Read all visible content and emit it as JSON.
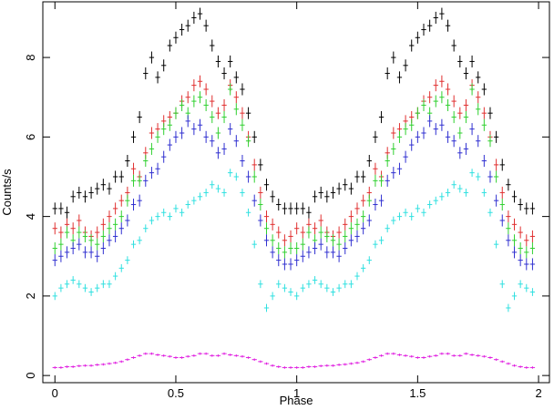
{
  "chart_data": {
    "type": "errorbar",
    "xlabel": "Phase",
    "ylabel": "Counts/s",
    "xlim": [
      -0.05,
      2.045
    ],
    "ylim": [
      -0.18,
      9.4
    ],
    "xticks": [
      0,
      0.5,
      1,
      1.5,
      2
    ],
    "yticks": [
      0,
      2,
      4,
      6,
      8
    ],
    "x": [
      0,
      0.025,
      0.05,
      0.075,
      0.1,
      0.125,
      0.15,
      0.175,
      0.2,
      0.225,
      0.25,
      0.275,
      0.3,
      0.325,
      0.35,
      0.375,
      0.4,
      0.425,
      0.45,
      0.475,
      0.5,
      0.525,
      0.55,
      0.575,
      0.6,
      0.625,
      0.65,
      0.675,
      0.7,
      0.725,
      0.75,
      0.775,
      0.8,
      0.825,
      0.85,
      0.875,
      0.9,
      0.925,
      0.95,
      0.975,
      1,
      1.025,
      1.05,
      1.075,
      1.1,
      1.125,
      1.15,
      1.175,
      1.2,
      1.225,
      1.25,
      1.275,
      1.3,
      1.325,
      1.35,
      1.375,
      1.4,
      1.425,
      1.45,
      1.475,
      1.5,
      1.525,
      1.55,
      1.575,
      1.6,
      1.625,
      1.65,
      1.675,
      1.7,
      1.725,
      1.75,
      1.775,
      1.8,
      1.825,
      1.85,
      1.875,
      1.9,
      1.925,
      1.95,
      1.975
    ],
    "series": [
      {
        "color": "#000000",
        "error": 0.15,
        "values": [
          4.2,
          4.2,
          4.1,
          4.5,
          4.6,
          4.5,
          4.6,
          4.7,
          4.8,
          4.7,
          5.0,
          5.0,
          5.4,
          6.0,
          6.5,
          7.6,
          8.0,
          7.5,
          7.8,
          8.3,
          8.5,
          8.7,
          8.8,
          9.0,
          9.1,
          8.8,
          8.3,
          7.9,
          7.6,
          7.9,
          7.5,
          7.2,
          6.6,
          6.0,
          5.3,
          4.8,
          4.5,
          4.3,
          4.2,
          4.2,
          4.2,
          4.2,
          4.1,
          4.5,
          4.6,
          4.5,
          4.6,
          4.7,
          4.8,
          4.7,
          5.0,
          5.0,
          5.4,
          6.0,
          6.5,
          7.6,
          8.0,
          7.5,
          7.8,
          8.3,
          8.5,
          8.7,
          8.8,
          9.0,
          9.1,
          8.8,
          8.3,
          7.9,
          7.6,
          7.9,
          7.5,
          7.2,
          6.6,
          6.0,
          5.3,
          4.8,
          4.5,
          4.3,
          4.2,
          4.2
        ]
      },
      {
        "color": "#e03030",
        "error": 0.15,
        "values": [
          3.7,
          3.6,
          3.8,
          3.7,
          3.9,
          3.6,
          3.5,
          3.6,
          3.8,
          4.0,
          4.2,
          4.4,
          4.6,
          5.2,
          5.0,
          5.6,
          6.1,
          6.2,
          6.4,
          6.5,
          6.6,
          6.9,
          7.0,
          7.3,
          7.4,
          7.2,
          6.9,
          6.6,
          6.8,
          7.3,
          7.0,
          6.6,
          6.0,
          5.3,
          4.6,
          4.0,
          3.8,
          3.6,
          3.4,
          3.5,
          3.7,
          3.6,
          3.8,
          3.7,
          3.9,
          3.6,
          3.5,
          3.6,
          3.8,
          4.0,
          4.2,
          4.4,
          4.6,
          5.2,
          5.0,
          5.6,
          6.1,
          6.2,
          6.4,
          6.5,
          6.6,
          6.9,
          7.0,
          7.3,
          7.4,
          7.2,
          6.9,
          6.6,
          6.8,
          7.3,
          7.0,
          6.6,
          6.0,
          5.3,
          4.6,
          4.0,
          3.8,
          3.6,
          3.4,
          3.5
        ]
      },
      {
        "color": "#30d030",
        "error": 0.15,
        "values": [
          3.2,
          3.3,
          3.6,
          3.4,
          3.6,
          3.5,
          3.4,
          3.3,
          3.5,
          3.7,
          3.8,
          4.0,
          4.4,
          4.9,
          4.9,
          5.4,
          5.7,
          6.0,
          6.2,
          6.3,
          6.6,
          6.8,
          6.6,
          6.9,
          7.0,
          6.8,
          6.5,
          6.1,
          6.5,
          7.2,
          6.7,
          6.3,
          5.9,
          5.0,
          4.3,
          3.7,
          3.4,
          3.2,
          3.1,
          3.2,
          3.2,
          3.3,
          3.6,
          3.4,
          3.6,
          3.5,
          3.4,
          3.3,
          3.5,
          3.7,
          3.8,
          4.0,
          4.4,
          4.9,
          4.9,
          5.4,
          5.7,
          6.0,
          6.2,
          6.3,
          6.6,
          6.8,
          6.6,
          6.9,
          7.0,
          6.8,
          6.5,
          6.1,
          6.5,
          7.2,
          6.7,
          6.3,
          5.9,
          5.0,
          4.3,
          3.7,
          3.4,
          3.2,
          3.1,
          3.2
        ]
      },
      {
        "color": "#3030d0",
        "error": 0.15,
        "values": [
          2.9,
          3.0,
          3.1,
          3.2,
          3.3,
          3.1,
          3.1,
          3.0,
          3.2,
          3.4,
          3.5,
          3.7,
          3.9,
          4.3,
          4.4,
          4.9,
          5.1,
          5.2,
          5.5,
          5.8,
          6.0,
          6.1,
          6.4,
          6.2,
          6.3,
          6.0,
          5.9,
          5.6,
          5.7,
          6.2,
          5.9,
          5.4,
          5.0,
          4.4,
          3.9,
          3.4,
          3.1,
          2.9,
          2.8,
          2.8,
          2.9,
          3.0,
          3.1,
          3.2,
          3.3,
          3.1,
          3.1,
          3.0,
          3.2,
          3.4,
          3.5,
          3.7,
          3.9,
          4.3,
          4.4,
          4.9,
          5.1,
          5.2,
          5.5,
          5.8,
          6.0,
          6.1,
          6.4,
          6.2,
          6.3,
          6.0,
          5.9,
          5.6,
          5.7,
          6.2,
          5.9,
          5.4,
          5.0,
          4.4,
          3.9,
          3.4,
          3.1,
          2.9,
          2.8,
          2.8
        ]
      },
      {
        "color": "#30e0e0",
        "error": 0.1,
        "values": [
          2.0,
          2.2,
          2.3,
          2.4,
          2.3,
          2.2,
          2.1,
          2.2,
          2.3,
          2.3,
          2.5,
          2.7,
          2.9,
          3.3,
          3.4,
          3.7,
          3.9,
          4.0,
          4.1,
          4.0,
          4.2,
          4.1,
          4.3,
          4.4,
          4.5,
          4.6,
          4.8,
          4.7,
          4.6,
          5.1,
          5.0,
          4.6,
          4.1,
          3.3,
          2.3,
          1.7,
          2.0,
          2.3,
          2.2,
          2.1,
          2.0,
          2.2,
          2.3,
          2.4,
          2.3,
          2.2,
          2.1,
          2.2,
          2.3,
          2.3,
          2.5,
          2.7,
          2.9,
          3.3,
          3.4,
          3.7,
          3.9,
          4.0,
          4.1,
          4.0,
          4.2,
          4.1,
          4.3,
          4.4,
          4.5,
          4.6,
          4.8,
          4.7,
          4.6,
          5.1,
          5.0,
          4.6,
          4.1,
          3.3,
          2.3,
          1.7,
          2.0,
          2.3,
          2.2,
          2.1
        ]
      },
      {
        "color": "#e020e0",
        "error": 0.03,
        "values": [
          0.2,
          0.2,
          0.22,
          0.22,
          0.24,
          0.25,
          0.25,
          0.27,
          0.28,
          0.3,
          0.32,
          0.35,
          0.4,
          0.45,
          0.5,
          0.55,
          0.55,
          0.52,
          0.5,
          0.48,
          0.45,
          0.45,
          0.48,
          0.5,
          0.55,
          0.55,
          0.5,
          0.5,
          0.55,
          0.52,
          0.5,
          0.48,
          0.45,
          0.4,
          0.35,
          0.3,
          0.25,
          0.22,
          0.2,
          0.2,
          0.2,
          0.2,
          0.22,
          0.22,
          0.24,
          0.25,
          0.25,
          0.27,
          0.28,
          0.3,
          0.32,
          0.35,
          0.4,
          0.45,
          0.5,
          0.55,
          0.55,
          0.52,
          0.5,
          0.48,
          0.45,
          0.45,
          0.48,
          0.5,
          0.55,
          0.55,
          0.5,
          0.5,
          0.55,
          0.52,
          0.5,
          0.48,
          0.45,
          0.4,
          0.35,
          0.3,
          0.25,
          0.22,
          0.2,
          0.2
        ]
      }
    ]
  }
}
